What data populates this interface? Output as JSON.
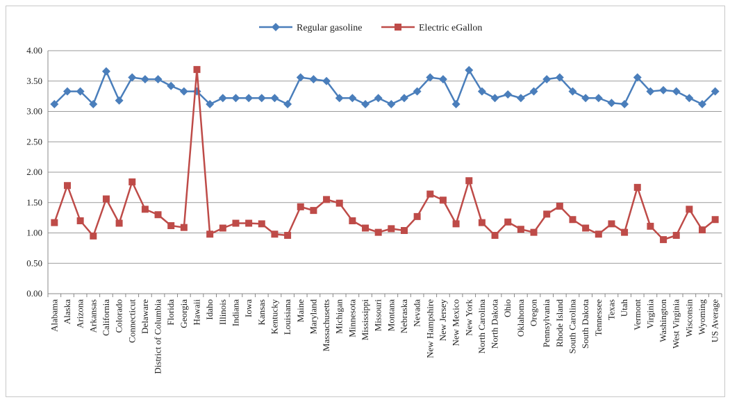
{
  "chart_data": {
    "type": "line",
    "title": "",
    "xlabel": "",
    "ylabel": "",
    "ylim": [
      0,
      4
    ],
    "yticks": [
      "0.00",
      "0.50",
      "1.00",
      "1.50",
      "2.00",
      "2.50",
      "3.00",
      "3.50",
      "4.00"
    ],
    "grid": true,
    "legend_position": "top-center",
    "categories": [
      "Alabama",
      "Alaska",
      "Arizona",
      "Arkansas",
      "California",
      "Colorado",
      "Connecticut",
      "Delaware",
      "District of Columbia",
      "Florida",
      "Georgia",
      "Hawaii",
      "Idaho",
      "Illinois",
      "Indiana",
      "Iowa",
      "Kansas",
      "Kentucky",
      "Louisiana",
      "Maine",
      "Maryland",
      "Massachusetts",
      "Michigan",
      "Minnesota",
      "Mississippi",
      "Missouri",
      "Montana",
      "Nebraska",
      "Nevada",
      "New Hampshire",
      "New Jersey",
      "New Mexico",
      "New York",
      "North Carolina",
      "North Dakota",
      "Ohio",
      "Oklahoma",
      "Oregon",
      "Pennsylvania",
      "Rhode Island",
      "South Carolina",
      "South Dakota",
      "Tennessee",
      "Texas",
      "Utah",
      "Vermont",
      "Virginia",
      "Washington",
      "West Virginia",
      "Wisconsin",
      "Wyoming",
      "US Average"
    ],
    "series": [
      {
        "name": "Regular gasoline",
        "color": "#4a7ebb",
        "marker": "diamond",
        "values": [
          3.12,
          3.33,
          3.33,
          3.12,
          3.66,
          3.18,
          3.56,
          3.53,
          3.53,
          3.42,
          3.33,
          3.33,
          3.12,
          3.22,
          3.22,
          3.22,
          3.22,
          3.22,
          3.12,
          3.56,
          3.53,
          3.5,
          3.22,
          3.22,
          3.12,
          3.22,
          3.12,
          3.22,
          3.33,
          3.56,
          3.53,
          3.12,
          3.68,
          3.33,
          3.22,
          3.28,
          3.22,
          3.33,
          3.53,
          3.56,
          3.33,
          3.22,
          3.22,
          3.14,
          3.12,
          3.56,
          3.33,
          3.35,
          3.33,
          3.22,
          3.12,
          3.33
        ]
      },
      {
        "name": "Electric eGallon",
        "color": "#be4b48",
        "marker": "square",
        "values": [
          1.17,
          1.78,
          1.2,
          0.95,
          1.56,
          1.16,
          1.84,
          1.39,
          1.3,
          1.12,
          1.09,
          3.69,
          0.98,
          1.08,
          1.16,
          1.16,
          1.15,
          0.98,
          0.96,
          1.43,
          1.37,
          1.55,
          1.49,
          1.2,
          1.08,
          1.01,
          1.07,
          1.04,
          1.27,
          1.64,
          1.54,
          1.15,
          1.86,
          1.17,
          0.96,
          1.18,
          1.06,
          1.01,
          1.31,
          1.44,
          1.22,
          1.08,
          0.98,
          1.15,
          1.01,
          1.75,
          1.11,
          0.89,
          0.96,
          1.39,
          1.05,
          1.22
        ]
      }
    ]
  }
}
